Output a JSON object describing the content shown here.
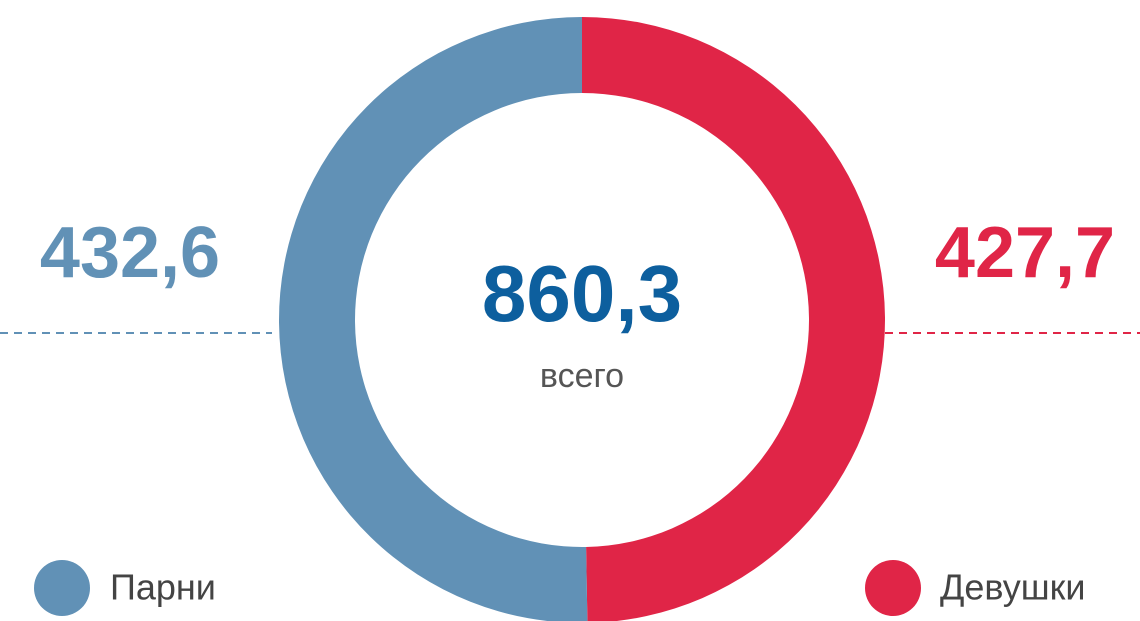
{
  "chart_data": {
    "type": "donut",
    "categories": [
      "Парни",
      "Девушки"
    ],
    "values": [
      432.6,
      427.7
    ],
    "value_labels": [
      "432,6",
      "427,7"
    ],
    "colors": [
      "#6191b6",
      "#e02547"
    ],
    "total": {
      "value": 860.3,
      "label": "860,3"
    },
    "total_caption": "всего"
  }
}
